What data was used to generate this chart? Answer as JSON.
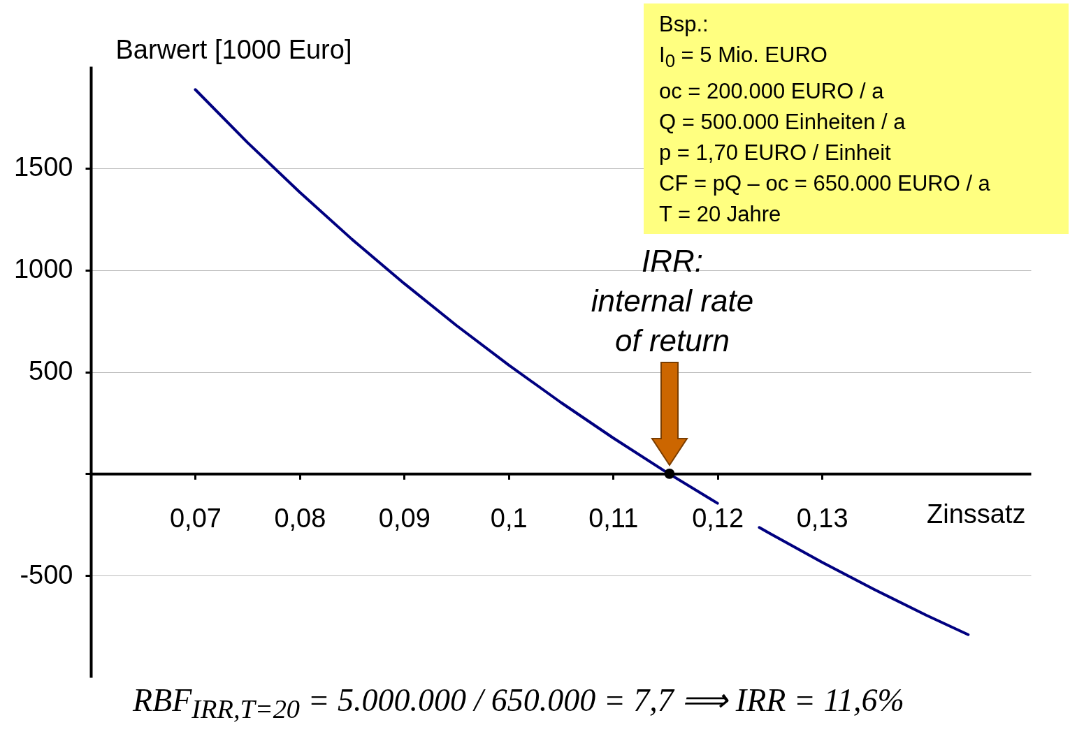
{
  "chart_data": {
    "type": "line",
    "xlabel": "Zinssatz",
    "ylabel": "Barwert [1000 Euro]",
    "x": [
      0.07,
      0.075,
      0.08,
      0.085,
      0.09,
      0.095,
      0.1,
      0.105,
      0.11,
      0.115,
      0.12,
      0.122,
      0.124,
      0.125,
      0.13,
      0.135,
      0.14,
      0.144
    ],
    "series": [
      {
        "color": "#000080",
        "values": [
          1886,
          1626,
          1382,
          1151,
          934,
          728,
          534,
          350,
          176,
          11,
          -145,
          null,
          -264,
          -293,
          -434,
          -568,
          -695,
          -790
        ]
      },
      {
        "type": "scatter",
        "color": "#000000",
        "x": [
          0.1154
        ],
        "values": [
          0
        ]
      }
    ],
    "xlim": [
      0.06,
      0.15
    ],
    "ylim": [
      -1000,
      2000
    ],
    "xticks": [
      {
        "value": 0.07,
        "label": "0,07"
      },
      {
        "value": 0.08,
        "label": "0,08"
      },
      {
        "value": 0.09,
        "label": "0,09"
      },
      {
        "value": 0.1,
        "label": "0,1"
      },
      {
        "value": 0.11,
        "label": "0,11"
      },
      {
        "value": 0.12,
        "label": "0,12"
      },
      {
        "value": 0.13,
        "label": "0,13"
      }
    ],
    "yticks": [
      -500,
      {
        "value": 0,
        "label": null
      },
      500,
      1000,
      1500
    ],
    "grid": "y",
    "annotations": [
      "IRR:\ninternal rate\nof return",
      "Bsp.:",
      "I$_{0}$ = 5 Mio. EURO",
      "oc = 200.000 EURO / a",
      "Q = 500.000 Einheiten / a",
      "p = 1,70 EURO / Einheit",
      "CF = pQ – oc = 650.000 EURO / a",
      "T = 20 Jahre",
      "RBF$_{IRR,T=20}$ = 5.000.000 / 650.000 = 7,7 ⟹ IRR = 11,6%"
    ]
  }
}
